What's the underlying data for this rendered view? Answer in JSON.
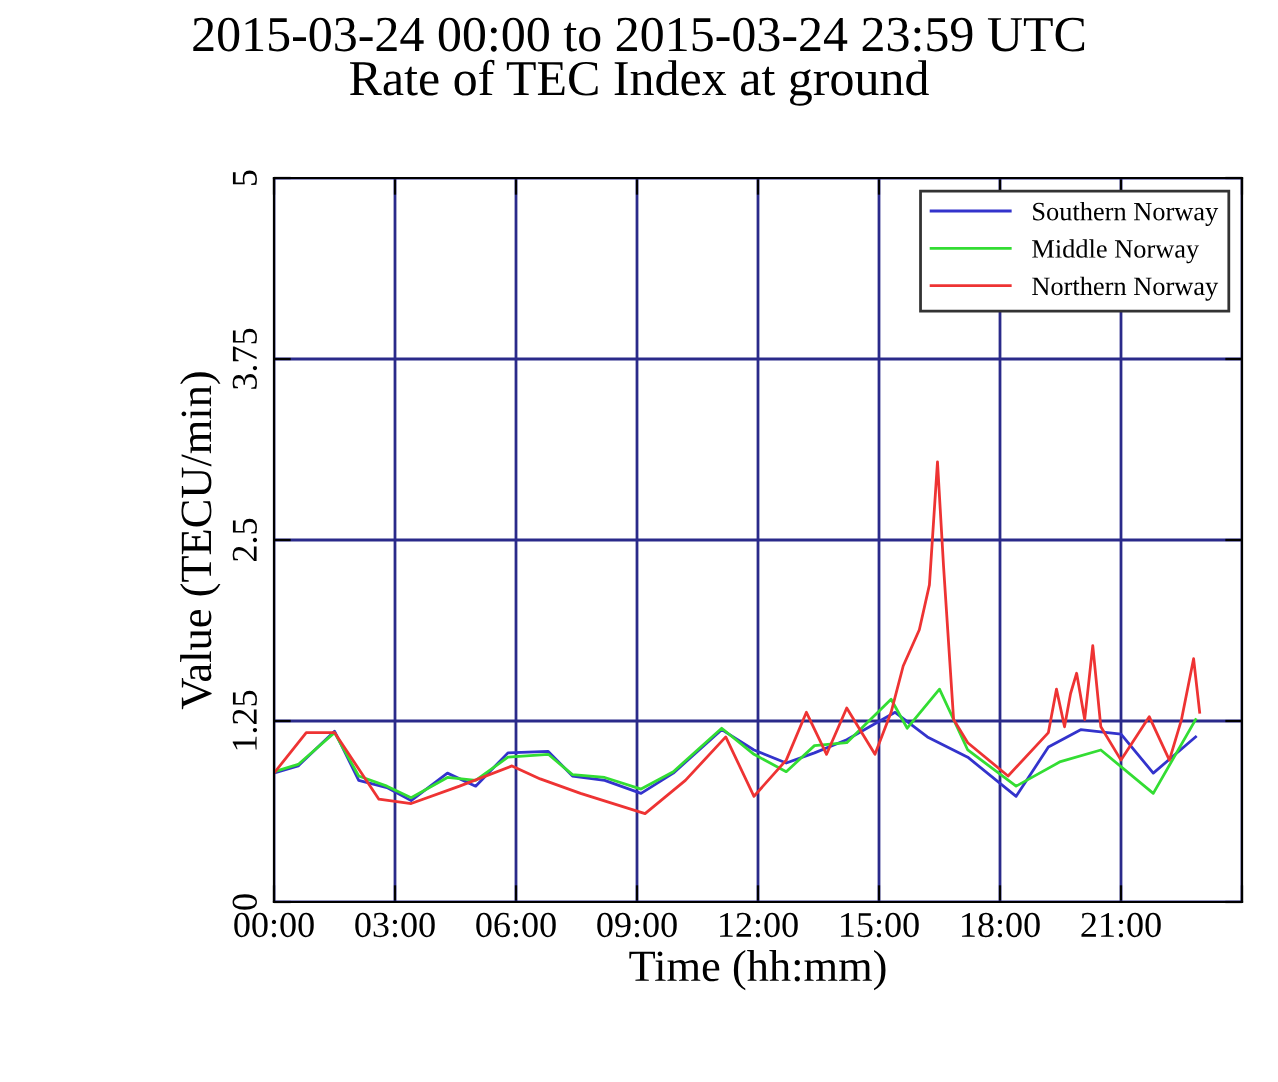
{
  "chart_data": {
    "type": "line",
    "title": "2015-03-24 00:00 to 2015-03-24 23:59 UTC\nRate of TEC Index at ground",
    "xlabel": "Time (hh:mm)",
    "ylabel": "Value (TECU/min)",
    "xlim": [
      0,
      24
    ],
    "xticks": [
      {
        "value": 0,
        "label": "00:00"
      },
      {
        "value": 3,
        "label": "03:00"
      },
      {
        "value": 6,
        "label": "06:00"
      },
      {
        "value": 9,
        "label": "09:00"
      },
      {
        "value": 12,
        "label": "12:00"
      },
      {
        "value": 15,
        "label": "15:00"
      },
      {
        "value": 18,
        "label": "18:00"
      },
      {
        "value": 21,
        "label": "21:00"
      },
      {
        "value": 24,
        "label": null
      }
    ],
    "ylim": [
      0,
      5
    ],
    "yticks": [
      0,
      1.25,
      2.5,
      3.75,
      5
    ],
    "grid": true,
    "legend": "top right",
    "series": [
      {
        "name": "Southern Norway",
        "color": "#3333cc",
        "x": [
          0,
          0.6,
          1.5,
          2.1,
          2.8,
          3.4,
          4.3,
          5.0,
          5.8,
          6.8,
          7.4,
          8.2,
          9.1,
          9.9,
          11.1,
          11.9,
          12.7,
          13.4,
          14.2,
          15.4,
          16.2,
          17.2,
          18.4,
          19.2,
          20.0,
          21.0,
          21.8,
          22.85
        ],
        "values": [
          0.89,
          0.94,
          1.18,
          0.84,
          0.79,
          0.7,
          0.89,
          0.8,
          1.03,
          1.04,
          0.87,
          0.84,
          0.75,
          0.89,
          1.19,
          1.05,
          0.96,
          1.03,
          1.12,
          1.31,
          1.14,
          1.0,
          0.73,
          1.07,
          1.19,
          1.16,
          0.89,
          1.14
        ]
      },
      {
        "name": "Middle Norway",
        "color": "#33dd33",
        "x": [
          0,
          0.6,
          1.5,
          2.1,
          2.8,
          3.4,
          4.3,
          5.0,
          5.8,
          6.8,
          7.4,
          8.2,
          9.1,
          9.9,
          11.1,
          11.9,
          12.7,
          13.4,
          14.2,
          15.3,
          15.7,
          16.5,
          17.2,
          18.4,
          19.5,
          20.5,
          21.8,
          22.85
        ],
        "values": [
          0.9,
          0.95,
          1.17,
          0.87,
          0.8,
          0.72,
          0.86,
          0.84,
          1.0,
          1.02,
          0.88,
          0.86,
          0.78,
          0.9,
          1.2,
          1.02,
          0.9,
          1.08,
          1.1,
          1.4,
          1.2,
          1.47,
          1.05,
          0.8,
          0.97,
          1.05,
          0.75,
          1.26
        ]
      },
      {
        "name": "Northern Norway",
        "color": "#ee3333",
        "x": [
          0,
          0.8,
          1.5,
          2.6,
          3.4,
          4.6,
          5.9,
          6.6,
          7.6,
          9.2,
          10.2,
          11.2,
          11.9,
          12.7,
          13.2,
          13.7,
          14.2,
          14.9,
          15.3,
          15.6,
          16.0,
          16.25,
          16.45,
          16.6,
          16.85,
          17.2,
          18.2,
          19.2,
          19.4,
          19.6,
          19.75,
          19.9,
          20.1,
          20.3,
          20.5,
          21.0,
          21.7,
          22.2,
          22.5,
          22.8,
          22.95
        ],
        "values": [
          0.89,
          1.17,
          1.17,
          0.71,
          0.68,
          0.8,
          0.94,
          0.85,
          0.75,
          0.61,
          0.84,
          1.14,
          0.73,
          0.98,
          1.31,
          1.02,
          1.34,
          1.02,
          1.31,
          1.63,
          1.88,
          2.19,
          3.04,
          2.32,
          1.26,
          1.1,
          0.87,
          1.17,
          1.47,
          1.21,
          1.44,
          1.58,
          1.26,
          1.77,
          1.21,
          0.98,
          1.28,
          0.98,
          1.26,
          1.68,
          1.31
        ]
      }
    ]
  }
}
